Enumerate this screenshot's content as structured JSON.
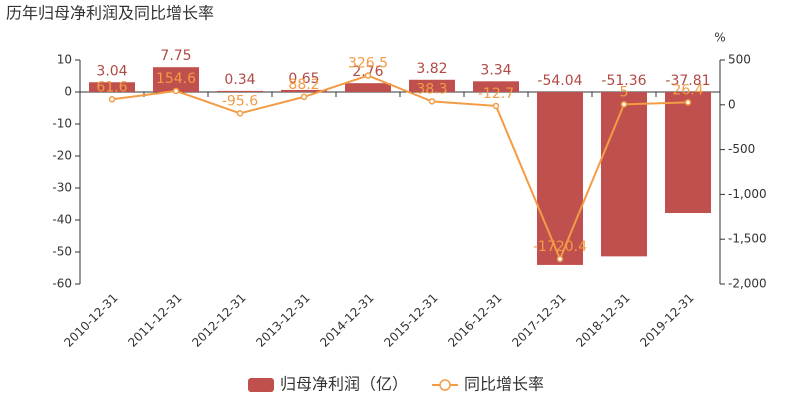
{
  "chart_data": {
    "type": "bar_line",
    "title": "历年归母净利润及同比增长率",
    "categories": [
      "2010-12-31",
      "2011-12-31",
      "2012-12-31",
      "2013-12-31",
      "2014-12-31",
      "2015-12-31",
      "2016-12-31",
      "2017-12-31",
      "2018-12-31",
      "2019-12-31"
    ],
    "series": [
      {
        "name": "归母净利润（亿）",
        "type": "bar",
        "color": "#c0504d",
        "values": [
          3.04,
          7.75,
          0.34,
          0.65,
          2.76,
          3.82,
          3.34,
          -54.04,
          -51.36,
          -37.81
        ]
      },
      {
        "name": "同比增长率",
        "type": "line",
        "axis": "y2",
        "color": "#f39c45",
        "values": [
          61.6,
          154.6,
          -95.6,
          88.2,
          326.5,
          38.3,
          -12.7,
          -1720.4,
          5,
          26.4
        ]
      }
    ],
    "ylim": [
      -60,
      10
    ],
    "yticks": [
      -60,
      -50,
      -40,
      -30,
      -20,
      -10,
      0,
      10
    ],
    "y2lim": [
      -2000,
      500
    ],
    "y2ticks": [
      {
        "value": -2000,
        "label": "-2,000"
      },
      {
        "value": -1500,
        "label": "-1,500"
      },
      {
        "value": -1000,
        "label": "-1,000"
      },
      -500,
      0,
      500
    ],
    "y2label": "%",
    "grid": false,
    "legend": "bottom"
  }
}
